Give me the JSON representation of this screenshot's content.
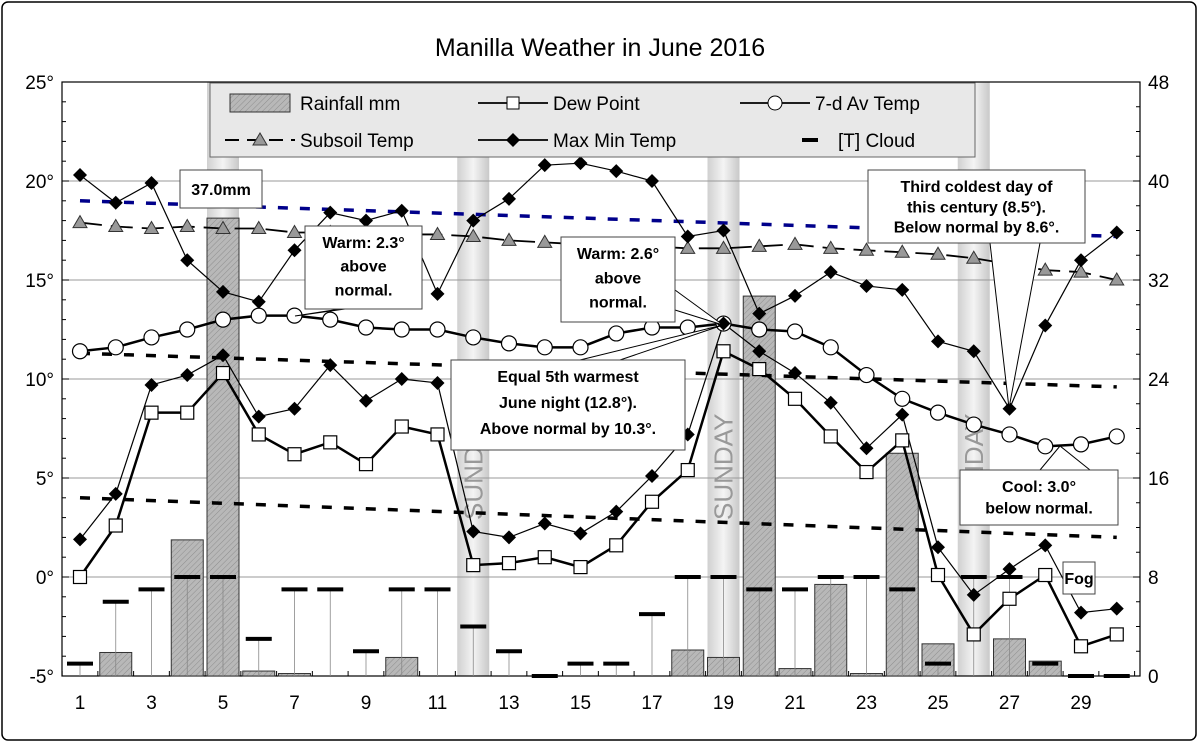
{
  "chart_data": {
    "type": "line",
    "title": "Manilla Weather in June 2016",
    "x": [
      1,
      2,
      3,
      4,
      5,
      6,
      7,
      8,
      9,
      10,
      11,
      12,
      13,
      14,
      15,
      16,
      17,
      18,
      19,
      20,
      21,
      22,
      23,
      24,
      25,
      26,
      27,
      28,
      29,
      30
    ],
    "x_tick_labels": [
      "1",
      "3",
      "5",
      "7",
      "9",
      "11",
      "13",
      "15",
      "17",
      "19",
      "21",
      "23",
      "25",
      "27",
      "29"
    ],
    "left_axis": {
      "range": [
        -5,
        25
      ],
      "tick_labels": [
        "25°",
        "20°",
        "15°",
        "10°",
        "5°",
        "0°",
        "-5°"
      ]
    },
    "right_axis": {
      "range": [
        0,
        48
      ],
      "tick_labels": [
        "48",
        "40",
        "32",
        "24",
        "16",
        "8",
        "0"
      ]
    },
    "grid": true,
    "legend_placement": "top",
    "sunday_label": "SUNDAY",
    "sundays": [
      5,
      12,
      19,
      26
    ],
    "series": [
      {
        "name": "Rainfall mm",
        "axis": "right",
        "kind": "bar",
        "color": "#b4b4b4",
        "values": [
          0,
          1.9,
          0,
          11.0,
          37.0,
          0.4,
          0.2,
          0,
          0,
          1.5,
          0,
          0,
          0,
          0,
          0,
          0,
          0,
          2.1,
          1.5,
          30.7,
          0.6,
          7.4,
          0.2,
          18.0,
          2.6,
          0,
          3.0,
          1.2,
          0,
          0
        ]
      },
      {
        "name": "Dew Point",
        "axis": "left",
        "kind": "line-square",
        "values": [
          0.0,
          2.6,
          8.3,
          8.3,
          10.3,
          7.2,
          6.2,
          6.8,
          5.7,
          7.6,
          7.2,
          0.6,
          0.7,
          1.0,
          0.5,
          1.6,
          3.8,
          5.4,
          11.4,
          10.5,
          9.0,
          7.1,
          5.3,
          6.9,
          0.1,
          -2.9,
          -1.1,
          0.1,
          -3.5,
          -2.9
        ]
      },
      {
        "name": "7-d Av Temp",
        "axis": "left",
        "kind": "line-circle",
        "values": [
          11.4,
          11.6,
          12.1,
          12.5,
          13.0,
          13.2,
          13.2,
          13.0,
          12.6,
          12.5,
          12.5,
          12.1,
          11.8,
          11.6,
          11.6,
          12.3,
          12.6,
          12.6,
          12.8,
          12.5,
          12.4,
          11.6,
          10.2,
          9.0,
          8.3,
          7.7,
          7.2,
          6.6,
          6.7,
          7.1
        ]
      },
      {
        "name": "Subsoil Temp",
        "axis": "left",
        "kind": "dash-triangle",
        "color": "#888888",
        "values": [
          17.9,
          17.7,
          17.6,
          17.7,
          17.6,
          17.6,
          17.4,
          17.4,
          17.3,
          17.3,
          17.3,
          17.2,
          17.0,
          16.9,
          16.8,
          16.8,
          16.7,
          16.6,
          16.6,
          16.7,
          16.8,
          16.6,
          16.5,
          16.4,
          16.3,
          16.1,
          15.8,
          15.5,
          15.4,
          15.0
        ]
      },
      {
        "name": "Max Min Temp",
        "axis": "left",
        "kind": "line-diamond",
        "max": [
          20.3,
          18.9,
          19.9,
          16.0,
          14.4,
          13.9,
          16.5,
          18.4,
          18.0,
          18.5,
          14.3,
          18.0,
          19.1,
          20.8,
          20.9,
          20.5,
          20.0,
          17.2,
          17.5,
          13.3,
          14.2,
          15.4,
          14.7,
          14.5,
          11.9,
          11.4,
          8.5,
          12.7,
          16.0,
          17.4
        ],
        "min": [
          1.9,
          4.2,
          9.7,
          10.2,
          11.2,
          8.1,
          8.5,
          10.7,
          8.9,
          10.0,
          9.8,
          2.3,
          2.0,
          2.7,
          2.2,
          3.3,
          5.1,
          7.2,
          12.8,
          11.4,
          10.3,
          8.8,
          6.5,
          8.2,
          1.5,
          -0.9,
          0.4,
          1.6,
          -1.8,
          -1.6
        ]
      },
      {
        "name": "[T]   Cloud",
        "axis": "right",
        "kind": "dash-marker",
        "values": [
          1,
          6,
          7,
          8,
          8,
          3,
          7,
          7,
          2,
          7,
          7,
          4,
          2,
          0,
          1,
          1,
          5,
          8,
          8,
          7,
          7,
          8,
          8,
          7,
          1,
          8,
          8,
          1,
          0,
          0
        ]
      },
      {
        "axis": "left",
        "kind": "dotted",
        "color": "#00008b",
        "values_start_end": [
          19.0,
          17.2
        ]
      },
      {
        "axis": "left",
        "kind": "dotted",
        "color": "#000000",
        "values_start_end": [
          11.3,
          9.6
        ]
      },
      {
        "axis": "left",
        "kind": "dotted",
        "color": "#000000",
        "values_start_end": [
          4.0,
          2.0
        ]
      }
    ],
    "annotations": [
      {
        "id": "rain",
        "lines": [
          "37.0mm"
        ]
      },
      {
        "id": "warm1",
        "lines": [
          "Warm: 2.3°",
          "above",
          "normal."
        ]
      },
      {
        "id": "warm2",
        "lines": [
          "Warm: 2.6°",
          "above",
          "normal."
        ]
      },
      {
        "id": "night",
        "lines": [
          "Equal 5th warmest",
          "June night (12.8°).",
          "Above normal by 10.3°."
        ]
      },
      {
        "id": "cold",
        "lines": [
          "Third coldest day of",
          "this century (8.5°).",
          "Below normal by 8.6°."
        ]
      },
      {
        "id": "cool",
        "lines": [
          "Cool: 3.0°",
          "below normal."
        ]
      },
      {
        "id": "fog",
        "lines": [
          "Fog"
        ]
      }
    ]
  }
}
